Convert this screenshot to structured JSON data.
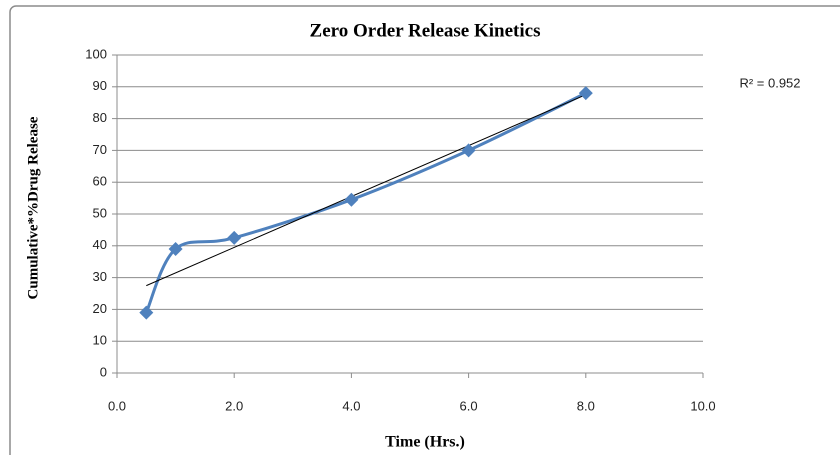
{
  "chart_data": {
    "type": "scatter",
    "title": "Zero Order Release Kinetics",
    "x_label": "Time (Hrs.)",
    "y_label": "Cumulative*%Drug Release",
    "annotation": "R² = 0.952",
    "x": [
      0.5,
      1,
      2,
      4,
      6,
      8
    ],
    "series": [
      {
        "color": "#4f81bd",
        "values": [
          19,
          39,
          42.5,
          54.5,
          70,
          88
        ]
      }
    ],
    "trendline": {
      "type": "linear",
      "color": "#000000"
    },
    "xlim": [
      0,
      10
    ],
    "xticks": [
      {
        "value": 0,
        "label": "0.0"
      },
      {
        "value": 2,
        "label": "2.0"
      },
      {
        "value": 4,
        "label": "4.0"
      },
      {
        "value": 6,
        "label": "6.0"
      },
      {
        "value": 8,
        "label": "8.0"
      },
      {
        "value": 10,
        "label": "10.0"
      }
    ],
    "ylim": [
      0,
      100
    ],
    "yticks": [
      0,
      10,
      20,
      30,
      40,
      50,
      60,
      70,
      80,
      90,
      100
    ],
    "grid": true
  }
}
